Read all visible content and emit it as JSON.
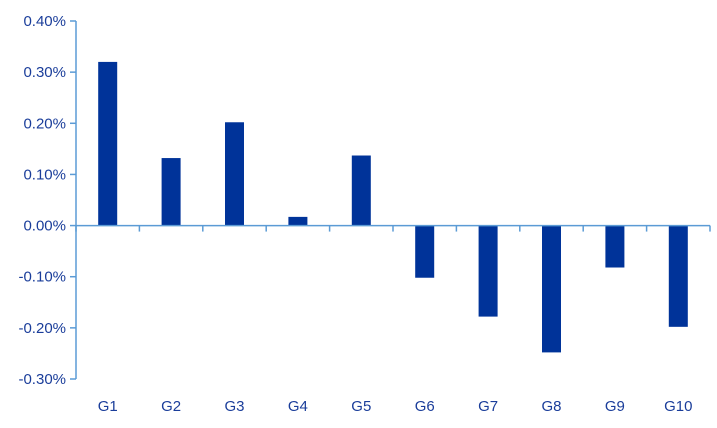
{
  "chart_data": {
    "type": "bar",
    "categories": [
      "G1",
      "G2",
      "G3",
      "G4",
      "G5",
      "G6",
      "G7",
      "G8",
      "G9",
      "G10"
    ],
    "values": [
      0.32,
      0.132,
      0.202,
      0.017,
      0.137,
      -0.102,
      -0.178,
      -0.248,
      -0.082,
      -0.198
    ],
    "ylim": [
      -0.3,
      0.4
    ],
    "y_ticks": [
      0.4,
      0.3,
      0.2,
      0.1,
      0.0,
      -0.1,
      -0.2,
      -0.3
    ],
    "y_tick_labels": [
      "0.40%",
      "0.30%",
      "0.20%",
      "0.10%",
      "0.00%",
      "-0.10%",
      "-0.20%",
      "-0.30%"
    ],
    "title": "",
    "xlabel": "",
    "ylabel": "",
    "grid": false,
    "colors": {
      "bar": "#003399",
      "axis": "#5b9bd5",
      "text": "#1a3d9a"
    }
  }
}
